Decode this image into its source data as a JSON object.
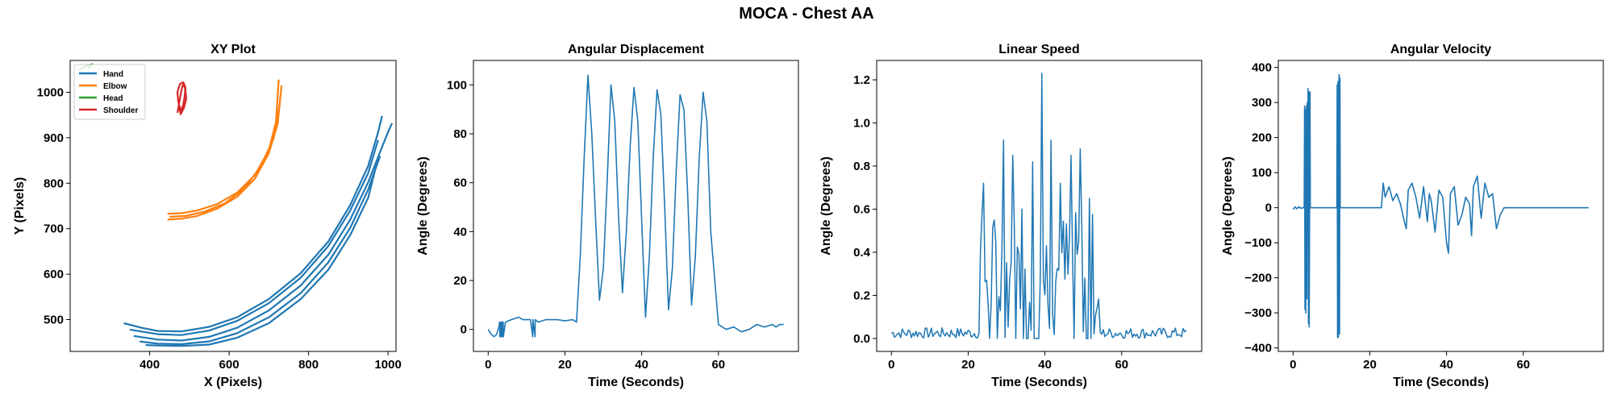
{
  "figure": {
    "title": "MOCA - Chest AA"
  },
  "colors": {
    "blue": "#1f77b4",
    "orange": "#ff7f0e",
    "green": "#2ca02c",
    "red": "#d62728"
  },
  "chart_data": [
    {
      "type": "line",
      "title": "XY Plot",
      "xlabel": "X (Pixels)",
      "ylabel": "Y (Pixels)",
      "xlim": [
        200,
        1020
      ],
      "ylim": [
        430,
        1070
      ],
      "xticks": [
        400,
        600,
        800,
        1000
      ],
      "yticks": [
        500,
        600,
        700,
        800,
        900,
        1000
      ],
      "legend_placement": "upper left",
      "series": [
        {
          "name": "Hand",
          "color": "#1f77b4",
          "paths": [
            {
              "x": [
                335,
                380,
                420,
                480,
                550,
                620,
                700,
                780,
                850,
                905,
                950,
                975,
                985
              ],
              "y": [
                492,
                482,
                475,
                474,
                484,
                505,
                545,
                602,
                672,
                752,
                838,
                912,
                948
              ]
            },
            {
              "x": [
                350,
                420,
                480,
                550,
                620,
                700,
                780,
                850,
                905,
                950,
                975
              ],
              "y": [
                478,
                468,
                466,
                476,
                497,
                536,
                592,
                662,
                740,
                822,
                895
              ]
            },
            {
              "x": [
                360,
                420,
                480,
                550,
                620,
                700,
                780,
                850,
                905,
                950,
                985,
                1000,
                1010
              ],
              "y": [
                464,
                456,
                454,
                462,
                482,
                520,
                575,
                643,
                720,
                802,
                880,
                912,
                932
              ]
            },
            {
              "x": [
                375,
                420,
                480,
                550,
                620,
                700,
                780,
                850,
                905,
                950,
                980
              ],
              "y": [
                452,
                447,
                446,
                452,
                470,
                505,
                558,
                626,
                702,
                786,
                860
              ]
            },
            {
              "x": [
                390,
                420,
                480,
                550,
                620,
                700,
                780,
                850,
                905,
                950,
                970
              ],
              "y": [
                444,
                443,
                442,
                445,
                460,
                492,
                545,
                610,
                686,
                768,
                838
              ]
            }
          ]
        },
        {
          "name": "Elbow",
          "color": "#ff7f0e",
          "paths": [
            {
              "x": [
                445,
                480,
                520,
                570,
                620,
                665,
                700,
                718,
                725
              ],
              "y": [
                733,
                734,
                740,
                754,
                779,
                818,
                872,
                935,
                1028
              ]
            },
            {
              "x": [
                445,
                480,
                520,
                570,
                620,
                665,
                700,
                722,
                732
              ],
              "y": [
                720,
                722,
                728,
                744,
                770,
                810,
                866,
                930,
                1015
              ]
            },
            {
              "x": [
                450,
                490,
                540,
                590,
                640,
                680,
                712,
                728
              ],
              "y": [
                726,
                728,
                738,
                756,
                790,
                838,
                898,
                975
              ]
            }
          ]
        },
        {
          "name": "Head",
          "color": "#2ca02c",
          "paths": [
            {
              "x": [
                220,
                240,
                255,
                245
              ],
              "y": [
                1048,
                1058,
                1062,
                1052
              ]
            }
          ]
        },
        {
          "name": "Shoulder",
          "color": "#d62728",
          "paths": [
            {
              "x": [
                470,
                474,
                478,
                482,
                486,
                490,
                488,
                484,
                478,
                472,
                470,
                476,
                484,
                490,
                492,
                486,
                478,
                474
              ],
              "y": [
                955,
                975,
                995,
                1012,
                1020,
                1010,
                990,
                970,
                960,
                980,
                1000,
                1018,
                1022,
                1005,
                985,
                965,
                952,
                968
              ]
            }
          ]
        }
      ]
    },
    {
      "type": "line",
      "title": "Angular Displacement",
      "xlabel": "Time (Seconds)",
      "ylabel": "Angle (Degrees)",
      "xlim": [
        -3.85,
        80.85
      ],
      "ylim": [
        -9,
        110
      ],
      "xticks": [
        0,
        20,
        40,
        60
      ],
      "yticks": [
        0,
        20,
        40,
        60,
        80,
        100
      ],
      "series": [
        {
          "color": "#1f77b4",
          "x": [
            0,
            0.8,
            1.5,
            2.2,
            2.8,
            3.0,
            3.05,
            3.3,
            3.35,
            3.6,
            3.65,
            3.9,
            3.95,
            4.5,
            6,
            8,
            9,
            10,
            11,
            11.6,
            11.65,
            12.2,
            12.25,
            13,
            15,
            18,
            20,
            22,
            23,
            24,
            25,
            26,
            27,
            28,
            29,
            30,
            31,
            32,
            33,
            34,
            35,
            36,
            37,
            38,
            39,
            40,
            41,
            42,
            43,
            44,
            45,
            46,
            47,
            48,
            49,
            50,
            51,
            52,
            53,
            54,
            55,
            56,
            57,
            58,
            60,
            62,
            64,
            66,
            68,
            70,
            72,
            74,
            75,
            76,
            77
          ],
          "values": [
            0,
            -2,
            -3,
            -2,
            1,
            3,
            -3,
            3,
            -3,
            3,
            -3,
            3,
            -3,
            3,
            4,
            5,
            4,
            4,
            4,
            -3,
            4,
            -3,
            4,
            3,
            4,
            4,
            3.5,
            4,
            3,
            30,
            70,
            104,
            80,
            45,
            12,
            25,
            60,
            100,
            85,
            45,
            15,
            40,
            75,
            99,
            85,
            45,
            5,
            30,
            70,
            98,
            88,
            50,
            8,
            25,
            65,
            96,
            90,
            55,
            10,
            30,
            70,
            97,
            85,
            40,
            2,
            0,
            1,
            -1,
            0,
            2,
            1,
            2,
            1,
            2,
            2
          ]
        }
      ]
    },
    {
      "type": "line",
      "title": "Linear Speed",
      "xlabel": "Time (Seconds)",
      "ylabel": "Angle (Degrees)",
      "xlim": [
        -3.85,
        80.85
      ],
      "ylim": [
        -0.06,
        1.29
      ],
      "xticks": [
        0,
        20,
        40,
        60
      ],
      "yticks": [
        0.0,
        0.2,
        0.4,
        0.6,
        0.8,
        1.0,
        1.2
      ],
      "series": [
        {
          "color": "#1f77b4",
          "noise": {
            "t_start": 0,
            "t_end": 77,
            "step": 0.4,
            "base_min": 0.0,
            "base_max": 0.05,
            "active_start": 23,
            "active_end": 54,
            "active_max": 0.6
          },
          "peaks": {
            "x": [
              24,
              26.5,
              29,
              31.5,
              34,
              36.5,
              39,
              41.5,
              44,
              46.5,
              49,
              51.5
            ],
            "values": [
              0.72,
              0.55,
              0.92,
              0.85,
              0.6,
              0.82,
              1.23,
              0.92,
              0.72,
              0.85,
              0.88,
              0.65
            ]
          }
        }
      ]
    },
    {
      "type": "line",
      "title": "Angular Velocity",
      "xlabel": "Time (Seconds)",
      "ylabel": "Angle (Degrees)",
      "xlim": [
        -3.85,
        80.85
      ],
      "ylim": [
        -410,
        420
      ],
      "xticks": [
        0,
        20,
        40,
        60
      ],
      "yticks": [
        -400,
        -300,
        -200,
        -100,
        0,
        100,
        200,
        300,
        400
      ],
      "series": [
        {
          "color": "#1f77b4",
          "x": [
            0,
            0.5,
            1,
            1.5,
            2,
            2.5,
            2.9,
            3.0,
            3.1,
            3.2,
            3.3,
            3.4,
            3.5,
            3.6,
            3.7,
            3.8,
            3.9,
            4.0,
            4.1,
            4.2,
            4.3,
            4.4,
            4.5,
            5,
            6,
            8,
            10,
            11.4,
            11.5,
            11.6,
            11.7,
            11.8,
            11.9,
            12.0,
            12.1,
            12.2,
            12.3,
            12.5,
            14,
            16,
            18,
            20,
            22,
            23,
            23.5,
            24,
            25,
            26,
            27,
            28,
            29,
            29.5,
            30,
            31,
            32,
            33,
            34,
            35,
            35.5,
            36,
            37,
            38,
            39,
            40,
            40.5,
            41,
            42,
            43,
            44,
            45,
            46,
            46.5,
            47,
            48,
            49,
            50,
            51,
            52,
            53,
            54,
            55,
            56,
            58,
            60,
            62,
            64,
            66,
            68,
            70,
            72,
            74,
            76,
            77
          ],
          "values": [
            -5,
            2,
            -3,
            3,
            -2,
            0,
            0,
            290,
            -290,
            280,
            -300,
            0,
            290,
            -260,
            300,
            0,
            340,
            -330,
            330,
            -340,
            0,
            330,
            0,
            0,
            0,
            0,
            0,
            0,
            350,
            -370,
            360,
            -370,
            0,
            380,
            -360,
            370,
            0,
            0,
            0,
            0,
            0,
            0,
            0,
            0,
            70,
            30,
            60,
            20,
            40,
            10,
            -40,
            -60,
            50,
            70,
            30,
            -30,
            60,
            -40,
            40,
            20,
            -70,
            50,
            30,
            -100,
            -130,
            40,
            60,
            -50,
            -20,
            30,
            10,
            -80,
            60,
            90,
            -30,
            70,
            30,
            40,
            -60,
            -20,
            0,
            0,
            0,
            0,
            0,
            0,
            0,
            0,
            0,
            0,
            0,
            0,
            0
          ]
        }
      ]
    }
  ]
}
